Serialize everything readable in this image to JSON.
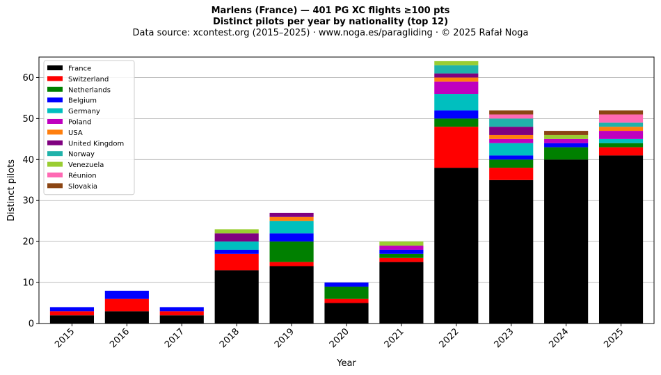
{
  "titles": {
    "line1": "Marlens (France)  —  401 PG XC flights ≥100 pts",
    "line2": "Distinct pilots per year by nationality (top 12)",
    "line3": "Data source: xcontest.org (2015–2025)  ·  www.noga.es/paragliding  ·  © 2025 Rafał Noga"
  },
  "chart_data": {
    "type": "bar",
    "stacked": true,
    "title": "Marlens (France)  —  401 PG XC flights ≥100 pts",
    "subtitle": "Distinct pilots per year by nationality (top 12)",
    "xlabel": "Year",
    "ylabel": "Distinct pilots",
    "ylim": [
      0,
      65
    ],
    "yticks": [
      0,
      10,
      20,
      30,
      40,
      50,
      60
    ],
    "grid": "horizontal",
    "legend_position": "top-left",
    "categories": [
      "2015",
      "2016",
      "2017",
      "2018",
      "2019",
      "2020",
      "2021",
      "2022",
      "2023",
      "2024",
      "2025"
    ],
    "series": [
      {
        "name": "France",
        "color": "#000000",
        "values": [
          2,
          3,
          2,
          13,
          14,
          5,
          15,
          38,
          35,
          40,
          41
        ]
      },
      {
        "name": "Switzerland",
        "color": "#ff0000",
        "values": [
          1,
          3,
          1,
          4,
          1,
          1,
          1,
          10,
          3,
          0,
          2
        ]
      },
      {
        "name": "Netherlands",
        "color": "#008000",
        "values": [
          0,
          0,
          0,
          0,
          5,
          3,
          1,
          2,
          2,
          3,
          1
        ]
      },
      {
        "name": "Belgium",
        "color": "#0000ff",
        "values": [
          1,
          2,
          1,
          1,
          2,
          1,
          1,
          2,
          1,
          1,
          0
        ]
      },
      {
        "name": "Germany",
        "color": "#00bfbf",
        "values": [
          0,
          0,
          0,
          2,
          3,
          0,
          0,
          4,
          3,
          0,
          1
        ]
      },
      {
        "name": "Poland",
        "color": "#bf00bf",
        "values": [
          0,
          0,
          0,
          0,
          0,
          0,
          1,
          3,
          1,
          1,
          2
        ]
      },
      {
        "name": "USA",
        "color": "#ff7f0e",
        "values": [
          0,
          0,
          0,
          0,
          1,
          0,
          0,
          1,
          1,
          0,
          1
        ]
      },
      {
        "name": "United Kingdom",
        "color": "#800080",
        "values": [
          0,
          0,
          0,
          2,
          1,
          0,
          0,
          1,
          2,
          0,
          0
        ]
      },
      {
        "name": "Norway",
        "color": "#20b2aa",
        "values": [
          0,
          0,
          0,
          0,
          0,
          0,
          0,
          2,
          2,
          0,
          1
        ]
      },
      {
        "name": "Venezuela",
        "color": "#9acd32",
        "values": [
          0,
          0,
          0,
          1,
          0,
          0,
          1,
          1,
          0,
          1,
          0
        ]
      },
      {
        "name": "Réunion",
        "color": "#ff69b4",
        "values": [
          0,
          0,
          0,
          0,
          0,
          0,
          0,
          0,
          1,
          0,
          2
        ]
      },
      {
        "name": "Slovakia",
        "color": "#8b4513",
        "values": [
          0,
          0,
          0,
          0,
          0,
          0,
          0,
          0,
          1,
          1,
          1
        ]
      }
    ]
  }
}
